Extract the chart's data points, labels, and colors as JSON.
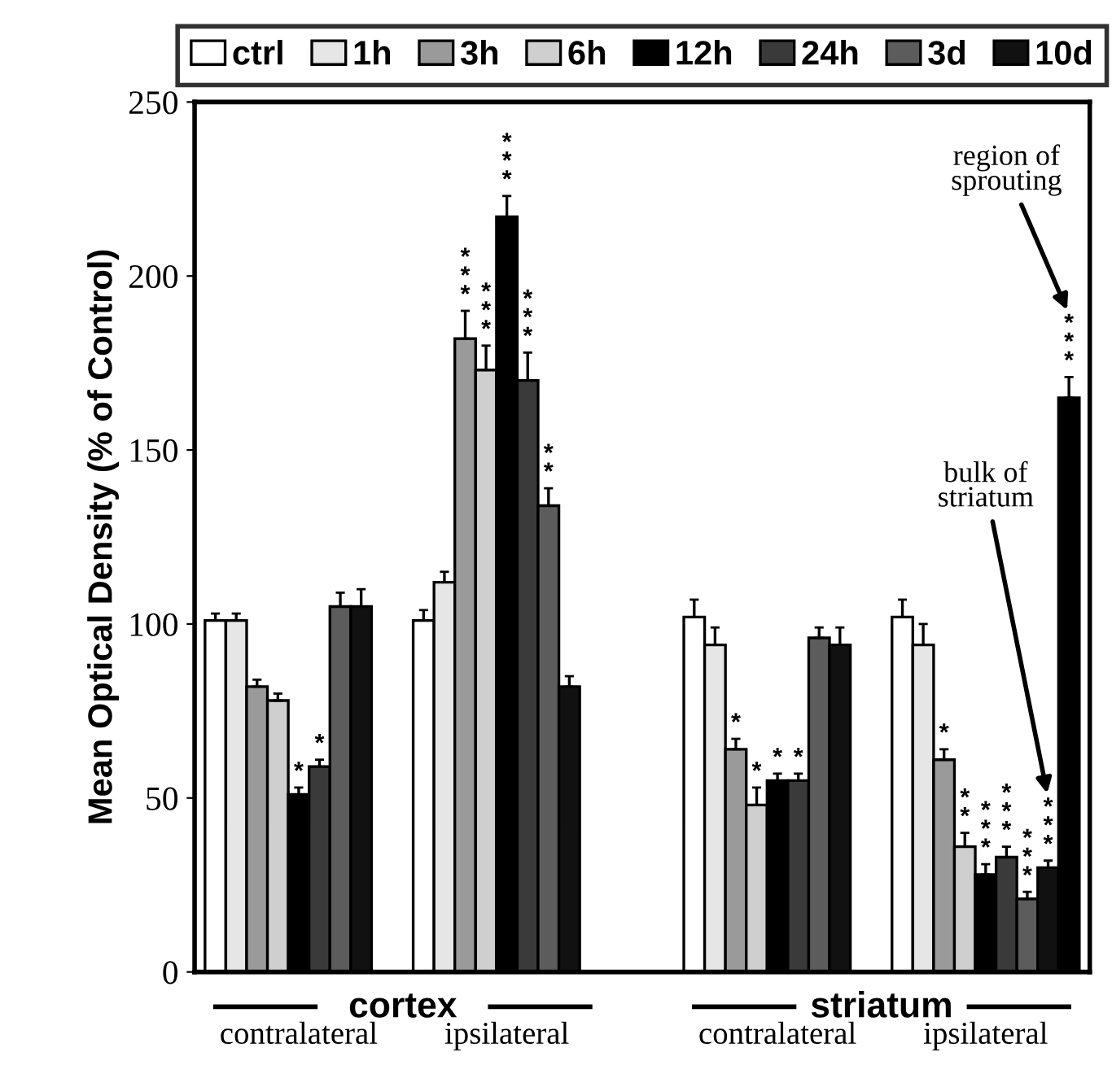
{
  "chart_data": {
    "type": "bar",
    "ylabel": "Mean Optical Density (% of Control)",
    "categories": [
      "contralateral",
      "ipsilateral",
      "contralateral",
      "ipsilateral"
    ],
    "series": [
      {
        "name": "ctrl",
        "color": "#ffffff",
        "values": [
          101,
          101,
          102,
          102
        ],
        "errors": [
          2,
          3,
          5,
          5
        ],
        "value_labels": [
          null,
          null,
          null,
          null
        ]
      },
      {
        "name": "1h",
        "color": "#e6e6e6",
        "values": [
          101,
          112,
          94,
          94
        ],
        "errors": [
          2,
          3,
          5,
          6
        ],
        "value_labels": [
          null,
          null,
          null,
          null
        ]
      },
      {
        "name": "3h",
        "color": "#9a9a9a",
        "values": [
          82,
          182,
          64,
          61
        ],
        "errors": [
          2,
          8,
          3,
          3
        ],
        "value_labels": [
          null,
          "***",
          "*",
          "*"
        ]
      },
      {
        "name": "6h",
        "color": "#cfcfcf",
        "values": [
          78,
          173,
          48,
          36
        ],
        "errors": [
          2,
          7,
          5,
          4
        ],
        "value_labels": [
          null,
          "***",
          "*",
          "**"
        ]
      },
      {
        "name": "12h",
        "color": "#000000",
        "values": [
          51,
          217,
          55,
          28
        ],
        "errors": [
          2,
          6,
          2,
          3
        ],
        "value_labels": [
          "*",
          "***",
          "*",
          "***"
        ]
      },
      {
        "name": "24h",
        "color": "#3a3a3a",
        "values": [
          59,
          170,
          55,
          33
        ],
        "errors": [
          2,
          8,
          2,
          3
        ],
        "value_labels": [
          "*",
          "***",
          "*",
          "***"
        ]
      },
      {
        "name": "3d",
        "color": "#5c5c5c",
        "values": [
          105,
          134,
          96,
          21
        ],
        "errors": [
          4,
          5,
          3,
          2
        ],
        "value_labels": [
          null,
          "**",
          null,
          "***"
        ]
      },
      {
        "name": "10d",
        "color": "#111111",
        "values": [
          105,
          82,
          94,
          30
        ],
        "errors": [
          5,
          3,
          5,
          2
        ],
        "value_labels": [
          null,
          null,
          null,
          "***"
        ]
      },
      {
        "color": "#000000",
        "values": [
          null,
          null,
          null,
          165
        ],
        "errors": [
          null,
          null,
          null,
          6
        ],
        "value_labels": [
          null,
          null,
          null,
          "***"
        ]
      }
    ],
    "ylim": [
      0,
      250
    ],
    "yticks": [
      0,
      50,
      100,
      150,
      200,
      250
    ],
    "grid": false,
    "legend": "top",
    "annotations": [
      "cortex",
      "striatum",
      "region of sprouting",
      "bulk of striatum"
    ]
  }
}
